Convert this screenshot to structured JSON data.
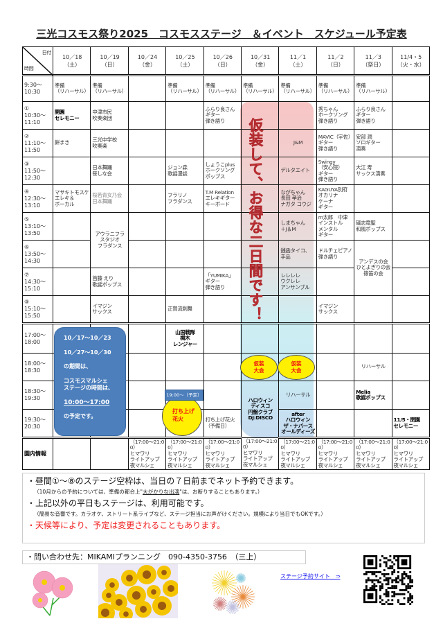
{
  "title": "三光コスモス祭り2025　コスモスステージ　＆イベント　スケジュール予定表",
  "corner": {
    "date_label": "日付",
    "time_label": "時間"
  },
  "headers": [
    {
      "date": "10／18",
      "day": "（土）"
    },
    {
      "date": "10／19",
      "day": "（日）"
    },
    {
      "date": "10／24",
      "day": "（金）"
    },
    {
      "date": "10／25",
      "day": "（土）"
    },
    {
      "date": "10／26",
      "day": "（日）"
    },
    {
      "date": "10／31",
      "day": "（金）"
    },
    {
      "date": "11／1",
      "day": "（土）"
    },
    {
      "date": "11／2",
      "day": "（日）"
    },
    {
      "date": "11／3",
      "day": "（祭日）"
    },
    {
      "date": "11/4・5",
      "day": "（火・水）"
    }
  ],
  "rows": [
    {
      "time": "9:30～\n10:30",
      "cells": [
        "準備\n（リハーサル）",
        "準備\n（リハーサル）",
        "",
        "準備\n（リハーサル）",
        "準備\n（リハーサル）",
        "準備\n（リハーサル）",
        "準備\n（リハーサル）",
        "準備\n（リハーサル）",
        "準備\n（リハーサル）",
        ""
      ]
    },
    {
      "time": "①\n10:30～\n11:10",
      "cells": [
        "開園\nセレモニー",
        "中津市民\n吹奏楽団",
        "",
        "",
        "ふらり良さん\nギター\n弾き語り",
        "",
        "",
        "秀ちゃん\nホークソング\n弾き語り",
        "ふらり良さん\nギター\n弾き語り",
        ""
      ]
    },
    {
      "time": "②\n11:10～\n11:50",
      "cells": [
        "餅まき",
        "三光中学校\n吹奏楽",
        "",
        "",
        "",
        "",
        "J&M",
        "MAVIC（宇佐）\nギター\n弾き語り",
        "安部 潤\nソロギター\n演奏",
        ""
      ]
    },
    {
      "time": "③\n11:50～\n12:30",
      "cells": [
        "",
        "日本舞踊\n笹しな会",
        "",
        "ジョン森\n歌謡漫談",
        "しょうこplus\nホークソング\nポップス",
        "",
        "デルタエイト",
        "Swingy\n（安心院）\nギター\n弾き語り",
        "大江 寿\nサックス演奏",
        ""
      ]
    },
    {
      "time": "④\n12:30～\n13:10",
      "cells": [
        "マサキトモスケ\nエレキ＆\nボーカル",
        "桜若青女乃会\n日本舞踊",
        "",
        "フラリノ\nフラダンス",
        "T.M Relation\nエレキギター\nキーボード",
        "",
        "ながちゃん\n長田 孝治\nナガタ コウジ",
        "KAGUYA別府\nオカリナ\nケーナ\nギター",
        "",
        ""
      ]
    },
    {
      "time": "⑤\n13:10～\n13:50",
      "cells": [
        "",
        "アウラニフラ\nスタジオ\nフラダンス",
        "",
        "",
        "",
        "",
        "しまちゃん\n＋J＆M",
        "m太郎　中津\nインストル\nメンタル\nギター",
        "礒志竜聖\n和風ポップス",
        ""
      ]
    },
    {
      "time": "⑥\n13:50～\n14:30",
      "cells": [
        "",
        null,
        "",
        "",
        "",
        "",
        "銭函タイコ、\n手品",
        "ドルチェピアノ\n弾き語り",
        "アンデスの会\nひとよぎりの会\n篠笛の会",
        ""
      ]
    },
    {
      "time": "⑦\n14:30～\n15:10",
      "cells": [
        "",
        "首藤 えり\n歌謡ポップス",
        "",
        "",
        "「YUMIKA」\nギター\n弾き語り",
        "",
        "レレレレ\nウクレレ\nアンサンブル",
        "",
        null,
        ""
      ]
    },
    {
      "time": "⑧\n15:10～\n15:50",
      "cells": [
        "",
        "イマジン\nサックス",
        "",
        "正賀流剣舞",
        "",
        "",
        "",
        "イマジン\nサックス",
        "",
        ""
      ]
    },
    {
      "time": "17:00～\n18:00",
      "cells": [
        "",
        "",
        "",
        "山国戦隊\n槻木\nレンジャー",
        "",
        "",
        "",
        "",
        "",
        ""
      ]
    },
    {
      "time": "18:00～\n18:30",
      "cells": [
        "",
        "",
        "",
        "",
        "",
        "",
        "",
        "",
        "リハーサル",
        ""
      ]
    },
    {
      "time": "18:30～\n19:30",
      "cells": [
        "",
        "",
        "",
        "",
        "",
        "ハロウィン\nディスコ\n円盤クラブ\nDJ:DISCO",
        "リハーサル",
        "",
        "Melia\n歌謡ポップス",
        ""
      ]
    },
    {
      "time": "19:30～\n20:30",
      "cells": [
        "",
        "",
        "",
        "",
        "打ち上げ花火\n（予備日）",
        null,
        "after\nハロウィン\nザ・ナバース\nオールディーズ",
        "",
        "",
        "11/5・閉園\nセレモニー"
      ]
    },
    {
      "time": "園内情報",
      "cells": [
        "",
        "",
        "（17:00～21:00）\nヒマワリ\nライトアップ\n夜マルシェ",
        "（17:00～21:00）\nヒマワリ\nライトアップ\n夜マルシェ",
        "（17:00～21:00）\nヒマワリ\nライトアップ\n夜マルシェ",
        "（17:00～21:00）\nヒマワリ\nライトアップ\n夜マルシェ",
        "（17:00～21:00）\nヒマワリ\nライトアップ\n夜マルシェ",
        "（17:00～21:00）\nヒマワリ\nライトアップ\n夜マルシェ",
        "（17:00～21:00）\nヒマワリ\nライトアップ\n夜マルシェ",
        "（17:00～21:00）\nヒマワリ\nライトアップ\n夜マルシェ"
      ]
    }
  ],
  "overlays": {
    "vertical_banner": "仮装して、お得な二日間です！",
    "blue_box": [
      "10／17～10／23",
      "10／27～10／30",
      "の期間は、",
      "コスモスマルシェ\nステージの時間は、",
      "10:00～17:00",
      "の予定です。"
    ],
    "costume_contest": "仮装\n大会",
    "fireworks_time": "19:00～（予定）",
    "fireworks": "打ち上げ\n花火"
  },
  "notes": {
    "line1": "・昼間①～⑧のステージ空枠は、当日の７日前までネット予約できます。",
    "line1_sub_a": "（10月からの予約については、準備の都合上\"",
    "line1_sub_u": "大がかりな出演",
    "line1_sub_b": "\"は、お断りすることもあります。）",
    "line2": "・上記以外の平日もステージは、利用可能です。",
    "line2_sub": "（簡易な音響です。カラオケ、ストリート系ライブなど、ステージ担当にお声がけください。規模により当日でもOKです。）",
    "line3": "・天候等により、予定は変更されることもあります。"
  },
  "contact": "・問い合わせ先：MIKAMIプランニング　090-4350-3756　（三上）",
  "booking_link": "ステージ予約サイト　⇒",
  "colors": {
    "blue_box": "#4d7fbc",
    "banner_text": "#e8474b",
    "highlight_yellow": "#ffef00",
    "warning_red": "#f02020",
    "link": "#1a1aee"
  }
}
